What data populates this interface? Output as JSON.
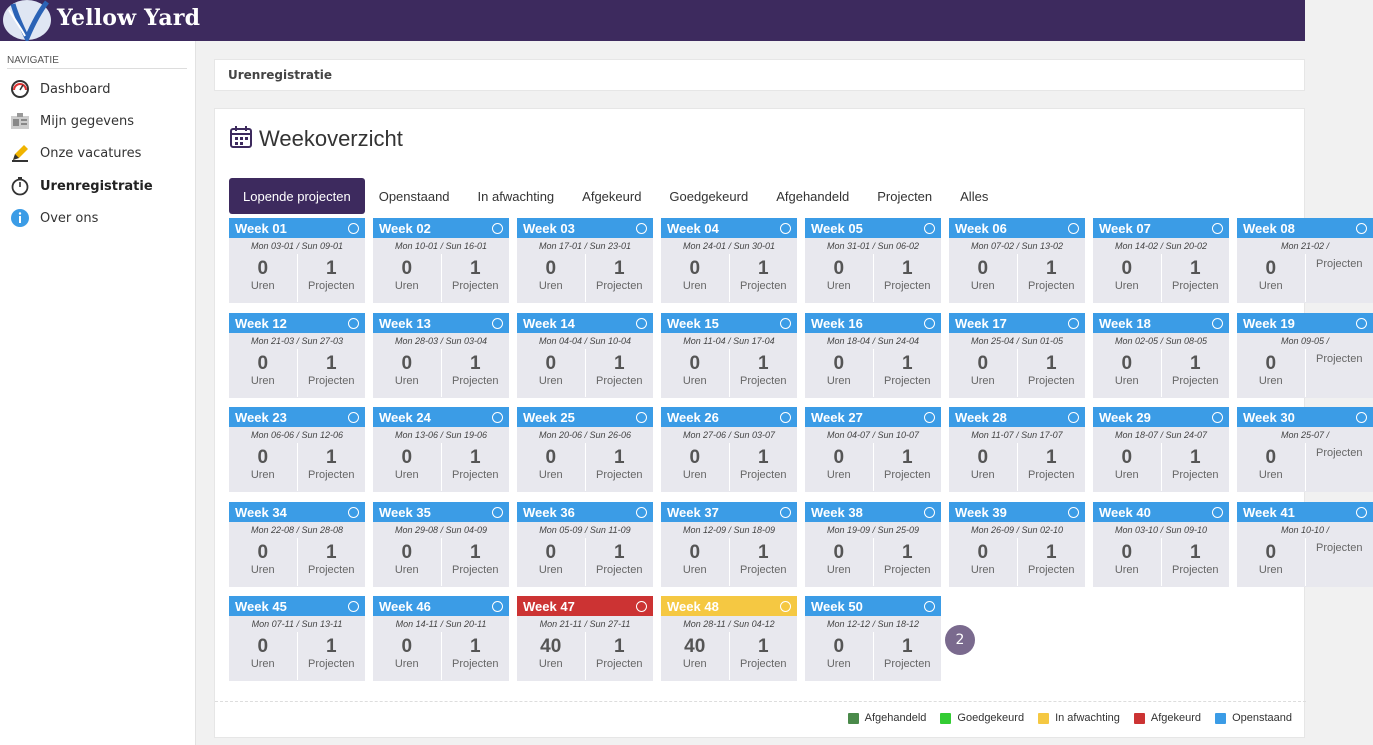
{
  "app": {
    "brand": "Yellow Yard"
  },
  "sidebar": {
    "heading": "NAVIGATIE",
    "items": [
      {
        "label": "Dashboard",
        "icon": "gauge-icon"
      },
      {
        "label": "Mijn gegevens",
        "icon": "id-card-icon"
      },
      {
        "label": "Onze vacatures",
        "icon": "pencil-icon"
      },
      {
        "label": "Urenregistratie",
        "icon": "stopwatch-icon"
      },
      {
        "label": "Over ons",
        "icon": "info-icon"
      }
    ]
  },
  "breadcrumb": "Urenregistratie",
  "page_title": "Weekoverzicht",
  "tabs": [
    "Lopende projecten",
    "Openstaand",
    "In afwachting",
    "Afgekeurd",
    "Goedgekeurd",
    "Afgehandeld",
    "Projecten",
    "Alles"
  ],
  "labels": {
    "hours": "Uren",
    "projects": "Projecten"
  },
  "colors": {
    "openstaand": "#3b9ce6",
    "afgekeurd": "#cc3333",
    "in_afwachting": "#f5c842",
    "afgehandeld": "#4a8a4a",
    "goedgekeurd": "#33cc33",
    "brand": "#3d2a5e"
  },
  "weeks": [
    [
      {
        "title": "Week 01",
        "dates": "Mon 03-01 / Sun 09-01",
        "hours": "0",
        "projects": "1",
        "status": "openstaand"
      },
      {
        "title": "Week 02",
        "dates": "Mon 10-01 / Sun 16-01",
        "hours": "0",
        "projects": "1",
        "status": "openstaand"
      },
      {
        "title": "Week 03",
        "dates": "Mon 17-01 / Sun 23-01",
        "hours": "0",
        "projects": "1",
        "status": "openstaand"
      },
      {
        "title": "Week 04",
        "dates": "Mon 24-01 / Sun 30-01",
        "hours": "0",
        "projects": "1",
        "status": "openstaand"
      },
      {
        "title": "Week 05",
        "dates": "Mon 31-01 / Sun 06-02",
        "hours": "0",
        "projects": "1",
        "status": "openstaand"
      },
      {
        "title": "Week 06",
        "dates": "Mon 07-02 / Sun 13-02",
        "hours": "0",
        "projects": "1",
        "status": "openstaand"
      },
      {
        "title": "Week 07",
        "dates": "Mon 14-02 / Sun 20-02",
        "hours": "0",
        "projects": "1",
        "status": "openstaand"
      },
      {
        "title": "Week 08",
        "dates": "Mon 21-02 /",
        "hours": "0",
        "projects": "",
        "status": "openstaand"
      }
    ],
    [
      {
        "title": "Week 12",
        "dates": "Mon 21-03 / Sun 27-03",
        "hours": "0",
        "projects": "1",
        "status": "openstaand"
      },
      {
        "title": "Week 13",
        "dates": "Mon 28-03 / Sun 03-04",
        "hours": "0",
        "projects": "1",
        "status": "openstaand"
      },
      {
        "title": "Week 14",
        "dates": "Mon 04-04 / Sun 10-04",
        "hours": "0",
        "projects": "1",
        "status": "openstaand"
      },
      {
        "title": "Week 15",
        "dates": "Mon 11-04 / Sun 17-04",
        "hours": "0",
        "projects": "1",
        "status": "openstaand"
      },
      {
        "title": "Week 16",
        "dates": "Mon 18-04 / Sun 24-04",
        "hours": "0",
        "projects": "1",
        "status": "openstaand"
      },
      {
        "title": "Week 17",
        "dates": "Mon 25-04 / Sun 01-05",
        "hours": "0",
        "projects": "1",
        "status": "openstaand"
      },
      {
        "title": "Week 18",
        "dates": "Mon 02-05 / Sun 08-05",
        "hours": "0",
        "projects": "1",
        "status": "openstaand"
      },
      {
        "title": "Week 19",
        "dates": "Mon 09-05 /",
        "hours": "0",
        "projects": "",
        "status": "openstaand"
      }
    ],
    [
      {
        "title": "Week 23",
        "dates": "Mon 06-06 / Sun 12-06",
        "hours": "0",
        "projects": "1",
        "status": "openstaand"
      },
      {
        "title": "Week 24",
        "dates": "Mon 13-06 / Sun 19-06",
        "hours": "0",
        "projects": "1",
        "status": "openstaand"
      },
      {
        "title": "Week 25",
        "dates": "Mon 20-06 / Sun 26-06",
        "hours": "0",
        "projects": "1",
        "status": "openstaand"
      },
      {
        "title": "Week 26",
        "dates": "Mon 27-06 / Sun 03-07",
        "hours": "0",
        "projects": "1",
        "status": "openstaand"
      },
      {
        "title": "Week 27",
        "dates": "Mon 04-07 / Sun 10-07",
        "hours": "0",
        "projects": "1",
        "status": "openstaand"
      },
      {
        "title": "Week 28",
        "dates": "Mon 11-07 / Sun 17-07",
        "hours": "0",
        "projects": "1",
        "status": "openstaand"
      },
      {
        "title": "Week 29",
        "dates": "Mon 18-07 / Sun 24-07",
        "hours": "0",
        "projects": "1",
        "status": "openstaand"
      },
      {
        "title": "Week 30",
        "dates": "Mon 25-07 /",
        "hours": "0",
        "projects": "",
        "status": "openstaand"
      }
    ],
    [
      {
        "title": "Week 34",
        "dates": "Mon 22-08 / Sun 28-08",
        "hours": "0",
        "projects": "1",
        "status": "openstaand"
      },
      {
        "title": "Week 35",
        "dates": "Mon 29-08 / Sun 04-09",
        "hours": "0",
        "projects": "1",
        "status": "openstaand"
      },
      {
        "title": "Week 36",
        "dates": "Mon 05-09 / Sun 11-09",
        "hours": "0",
        "projects": "1",
        "status": "openstaand"
      },
      {
        "title": "Week 37",
        "dates": "Mon 12-09 / Sun 18-09",
        "hours": "0",
        "projects": "1",
        "status": "openstaand"
      },
      {
        "title": "Week 38",
        "dates": "Mon 19-09 / Sun 25-09",
        "hours": "0",
        "projects": "1",
        "status": "openstaand"
      },
      {
        "title": "Week 39",
        "dates": "Mon 26-09 / Sun 02-10",
        "hours": "0",
        "projects": "1",
        "status": "openstaand"
      },
      {
        "title": "Week 40",
        "dates": "Mon 03-10 / Sun 09-10",
        "hours": "0",
        "projects": "1",
        "status": "openstaand"
      },
      {
        "title": "Week 41",
        "dates": "Mon 10-10 /",
        "hours": "0",
        "projects": "",
        "status": "openstaand"
      }
    ],
    [
      {
        "title": "Week 45",
        "dates": "Mon 07-11 / Sun 13-11",
        "hours": "0",
        "projects": "1",
        "status": "openstaand"
      },
      {
        "title": "Week 46",
        "dates": "Mon 14-11 / Sun 20-11",
        "hours": "0",
        "projects": "1",
        "status": "openstaand"
      },
      {
        "title": "Week 47",
        "dates": "Mon 21-11 / Sun 27-11",
        "hours": "40",
        "projects": "1",
        "status": "afgekeurd"
      },
      {
        "title": "Week 48",
        "dates": "Mon 28-11 / Sun 04-12",
        "hours": "40",
        "projects": "1",
        "status": "in_afwachting"
      },
      {
        "title": "Week 50",
        "dates": "Mon 12-12 / Sun 18-12",
        "hours": "0",
        "projects": "1",
        "status": "openstaand"
      }
    ]
  ],
  "notification_count": "2",
  "legend": [
    {
      "label": "Afgehandeld",
      "color": "#4a8a4a"
    },
    {
      "label": "Goedgekeurd",
      "color": "#33cc33"
    },
    {
      "label": "In afwachting",
      "color": "#f5c842"
    },
    {
      "label": "Afgekeurd",
      "color": "#cc3333"
    },
    {
      "label": "Openstaand",
      "color": "#3b9ce6"
    }
  ]
}
